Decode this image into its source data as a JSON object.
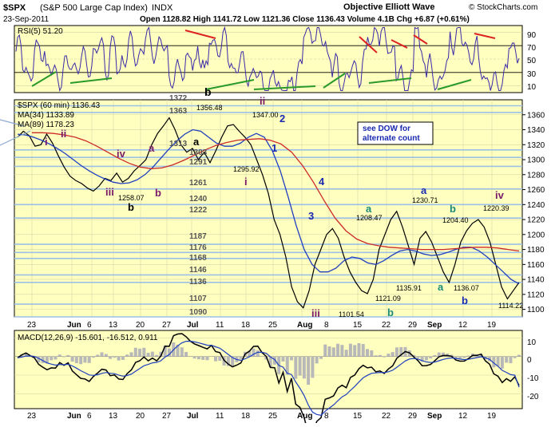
{
  "header": {
    "symbol": "$SPX",
    "index_name": "(S&P 500 Large Cap Index)",
    "exchange": "INDX",
    "date": "23-Sep-2011",
    "ohlc": "Open 1128.82  High 1141.72  Low 1121.36  Close 1136.43  Volume 4.1B  Chg +6.87 (+0.61%)",
    "author": "Objective Elliott Wave",
    "credit": "© StockCharts.com"
  },
  "rsi_panel": {
    "label": "RSI(5) 51.20",
    "ticks": [
      "90",
      "70",
      "50",
      "30",
      "10"
    ]
  },
  "price_panel": {
    "legend": [
      "$SPX (60 min) 1136.43",
      "MA(34) 1133.89",
      "MA(89) 1178.23"
    ],
    "note": [
      "see DOW for",
      "alternate count"
    ],
    "levels": [
      {
        "label": "1372",
        "value": 1372
      },
      {
        "label": "1363",
        "value": 1363
      },
      {
        "label": "1313",
        "value": 1313
      },
      {
        "label": "1303",
        "value": 1303
      },
      {
        "label": "1291",
        "value": 1291
      },
      {
        "label": "1261",
        "value": 1261
      },
      {
        "label": "1240",
        "value": 1240
      },
      {
        "label": "1222",
        "value": 1222
      },
      {
        "label": "1187",
        "value": 1187
      },
      {
        "label": "1176",
        "value": 1176
      },
      {
        "label": "1168",
        "value": 1168
      },
      {
        "label": "1146",
        "value": 1146
      },
      {
        "label": "1136",
        "value": 1136
      },
      {
        "label": "1107",
        "value": 1107
      },
      {
        "label": "1090",
        "value": 1090
      }
    ],
    "price_labels": [
      "1258.07",
      "1356.48",
      "1295.92",
      "1347.00",
      "1101.54",
      "1208.47",
      "1135.91",
      "1121.09",
      "1230.71",
      "1204.40",
      "1136.07",
      "1220.39",
      "1114.22"
    ],
    "wave_labels": [
      "i",
      "ii",
      "iii",
      "iv",
      "a",
      "b",
      "b",
      "i",
      "ii",
      "a",
      "1",
      "2",
      "3",
      "4",
      "iii",
      "a",
      "b",
      "a",
      "b",
      "a",
      "b",
      "iv"
    ]
  },
  "macd_panel": {
    "label": "MACD(12,26,9) -15.601, -16.512, 0.911",
    "ticks": [
      "10",
      "0",
      "-10",
      "-20"
    ]
  },
  "x_axis": {
    "months": [
      "23",
      "Jun",
      "6",
      "13",
      "20",
      "27",
      "Jul",
      "11",
      "18",
      "25",
      "Aug",
      "8",
      "15",
      "22",
      "29",
      "Sep",
      "12",
      "19"
    ]
  },
  "chart_data": {
    "type": "line",
    "title": "$SPX (S&P 500 Large Cap Index) INDX",
    "xlabel": "",
    "ylabel": "",
    "ylim": [
      1090,
      1380
    ],
    "y_ticks": [
      1100,
      1120,
      1140,
      1160,
      1180,
      1200,
      1220,
      1240,
      1260,
      1280,
      1300,
      1320,
      1340,
      1360
    ],
    "x_ticks": [
      "23",
      "Jun",
      "6",
      "13",
      "20",
      "27",
      "Jul",
      "11",
      "18",
      "25",
      "Aug",
      "8",
      "15",
      "22",
      "29",
      "Sep",
      "12",
      "19"
    ],
    "grid": true,
    "series": [
      {
        "name": "$SPX (60 min) 1136.43",
        "color": "#000000",
        "values": [
          1330,
          1338,
          1332,
          1318,
          1320,
          1334,
          1322,
          1305,
          1290,
          1278,
          1272,
          1268,
          1262,
          1258,
          1265,
          1275,
          1272,
          1282,
          1270,
          1275,
          1285,
          1292,
          1300,
          1320,
          1335,
          1345,
          1356,
          1340,
          1320,
          1310,
          1315,
          1300,
          1310,
          1296,
          1312,
          1330,
          1345,
          1347,
          1338,
          1330,
          1320,
          1300,
          1280,
          1255,
          1220,
          1200,
          1170,
          1130,
          1110,
          1102,
          1125,
          1160,
          1180,
          1200,
          1208,
          1195,
          1170,
          1150,
          1136,
          1125,
          1121,
          1140,
          1180,
          1200,
          1220,
          1231,
          1210,
          1185,
          1160,
          1195,
          1204,
          1190,
          1170,
          1150,
          1136,
          1160,
          1190,
          1205,
          1215,
          1220,
          1210,
          1190,
          1160,
          1130,
          1114,
          1125,
          1136
        ]
      },
      {
        "name": "MA(34) 1133.89",
        "color": "#1f3fbf",
        "values": [
          1334,
          1333,
          1330,
          1326,
          1321,
          1315,
          1308,
          1300,
          1292,
          1285,
          1279,
          1274,
          1270,
          1268,
          1269,
          1273,
          1280,
          1290,
          1302,
          1314,
          1325,
          1334,
          1340,
          1338,
          1330,
          1322,
          1318,
          1318,
          1322,
          1330,
          1335,
          1330,
          1312,
          1285,
          1250,
          1212,
          1180,
          1160,
          1150,
          1150,
          1155,
          1165,
          1170,
          1168,
          1162,
          1160,
          1165,
          1172,
          1178,
          1180,
          1178,
          1174,
          1172,
          1173,
          1176,
          1180,
          1183,
          1183,
          1178,
          1170,
          1160,
          1150,
          1140,
          1134
        ]
      },
      {
        "name": "MA(89) 1178.23",
        "color": "#cc2a2a",
        "values": [
          1336,
          1336,
          1335,
          1333,
          1330,
          1325,
          1318,
          1310,
          1302,
          1295,
          1290,
          1288,
          1289,
          1293,
          1299,
          1306,
          1313,
          1319,
          1323,
          1326,
          1327,
          1328,
          1326,
          1321,
          1310,
          1292,
          1270,
          1245,
          1222,
          1205,
          1194,
          1188,
          1185,
          1183,
          1182,
          1181,
          1180,
          1180,
          1180,
          1181,
          1182,
          1183,
          1183,
          1182,
          1180,
          1178
        ]
      }
    ],
    "rsi": {
      "name": "RSI(5) 51.20",
      "ylim": [
        0,
        100
      ],
      "value": 51.2
    },
    "macd": {
      "name": "MACD(12,26,9)",
      "macd": -15.601,
      "signal": -16.512,
      "histogram": 0.911,
      "ylim": [
        -28,
        14
      ]
    }
  }
}
